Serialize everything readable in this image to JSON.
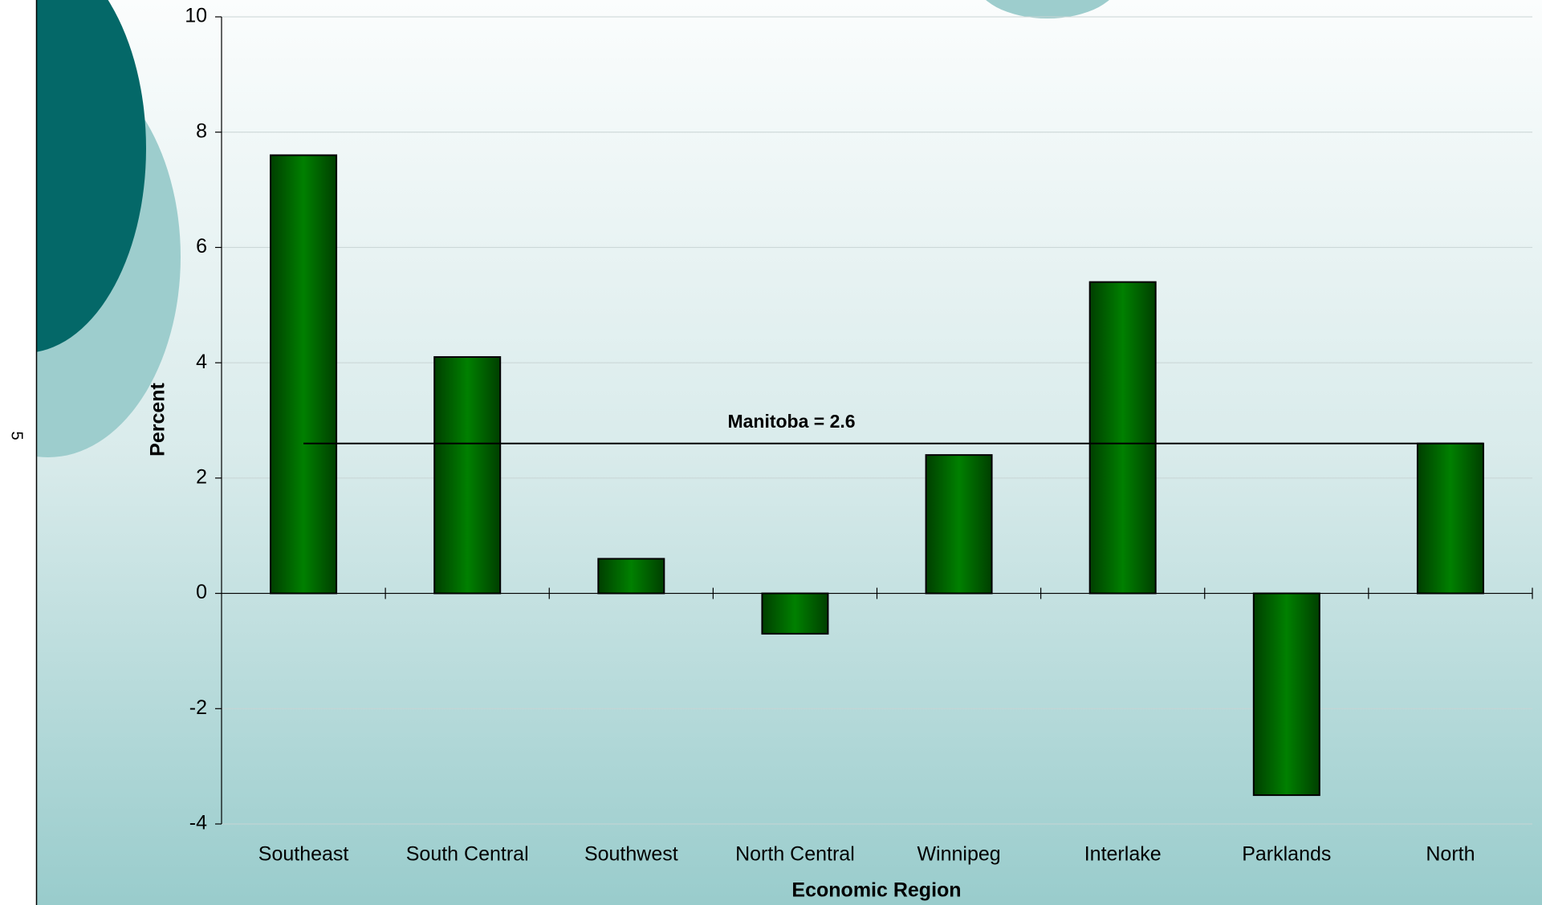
{
  "page_number": "5",
  "chart_data": {
    "type": "bar",
    "categories": [
      "Southeast",
      "South Central",
      "Southwest",
      "North Central",
      "Winnipeg",
      "Interlake",
      "Parklands",
      "North"
    ],
    "values": [
      7.6,
      4.1,
      0.6,
      -0.7,
      2.4,
      5.4,
      -3.5,
      2.6
    ],
    "color": "#007a00",
    "ylim": [
      -4,
      10
    ],
    "yticks": [
      -4,
      -2,
      0,
      2,
      4,
      6,
      8,
      10
    ],
    "grid": true,
    "y_label": "Percent",
    "x_label": "Economic Region",
    "reference_line": {
      "value": 2.6,
      "label": "Manitoba = 2.6"
    }
  }
}
